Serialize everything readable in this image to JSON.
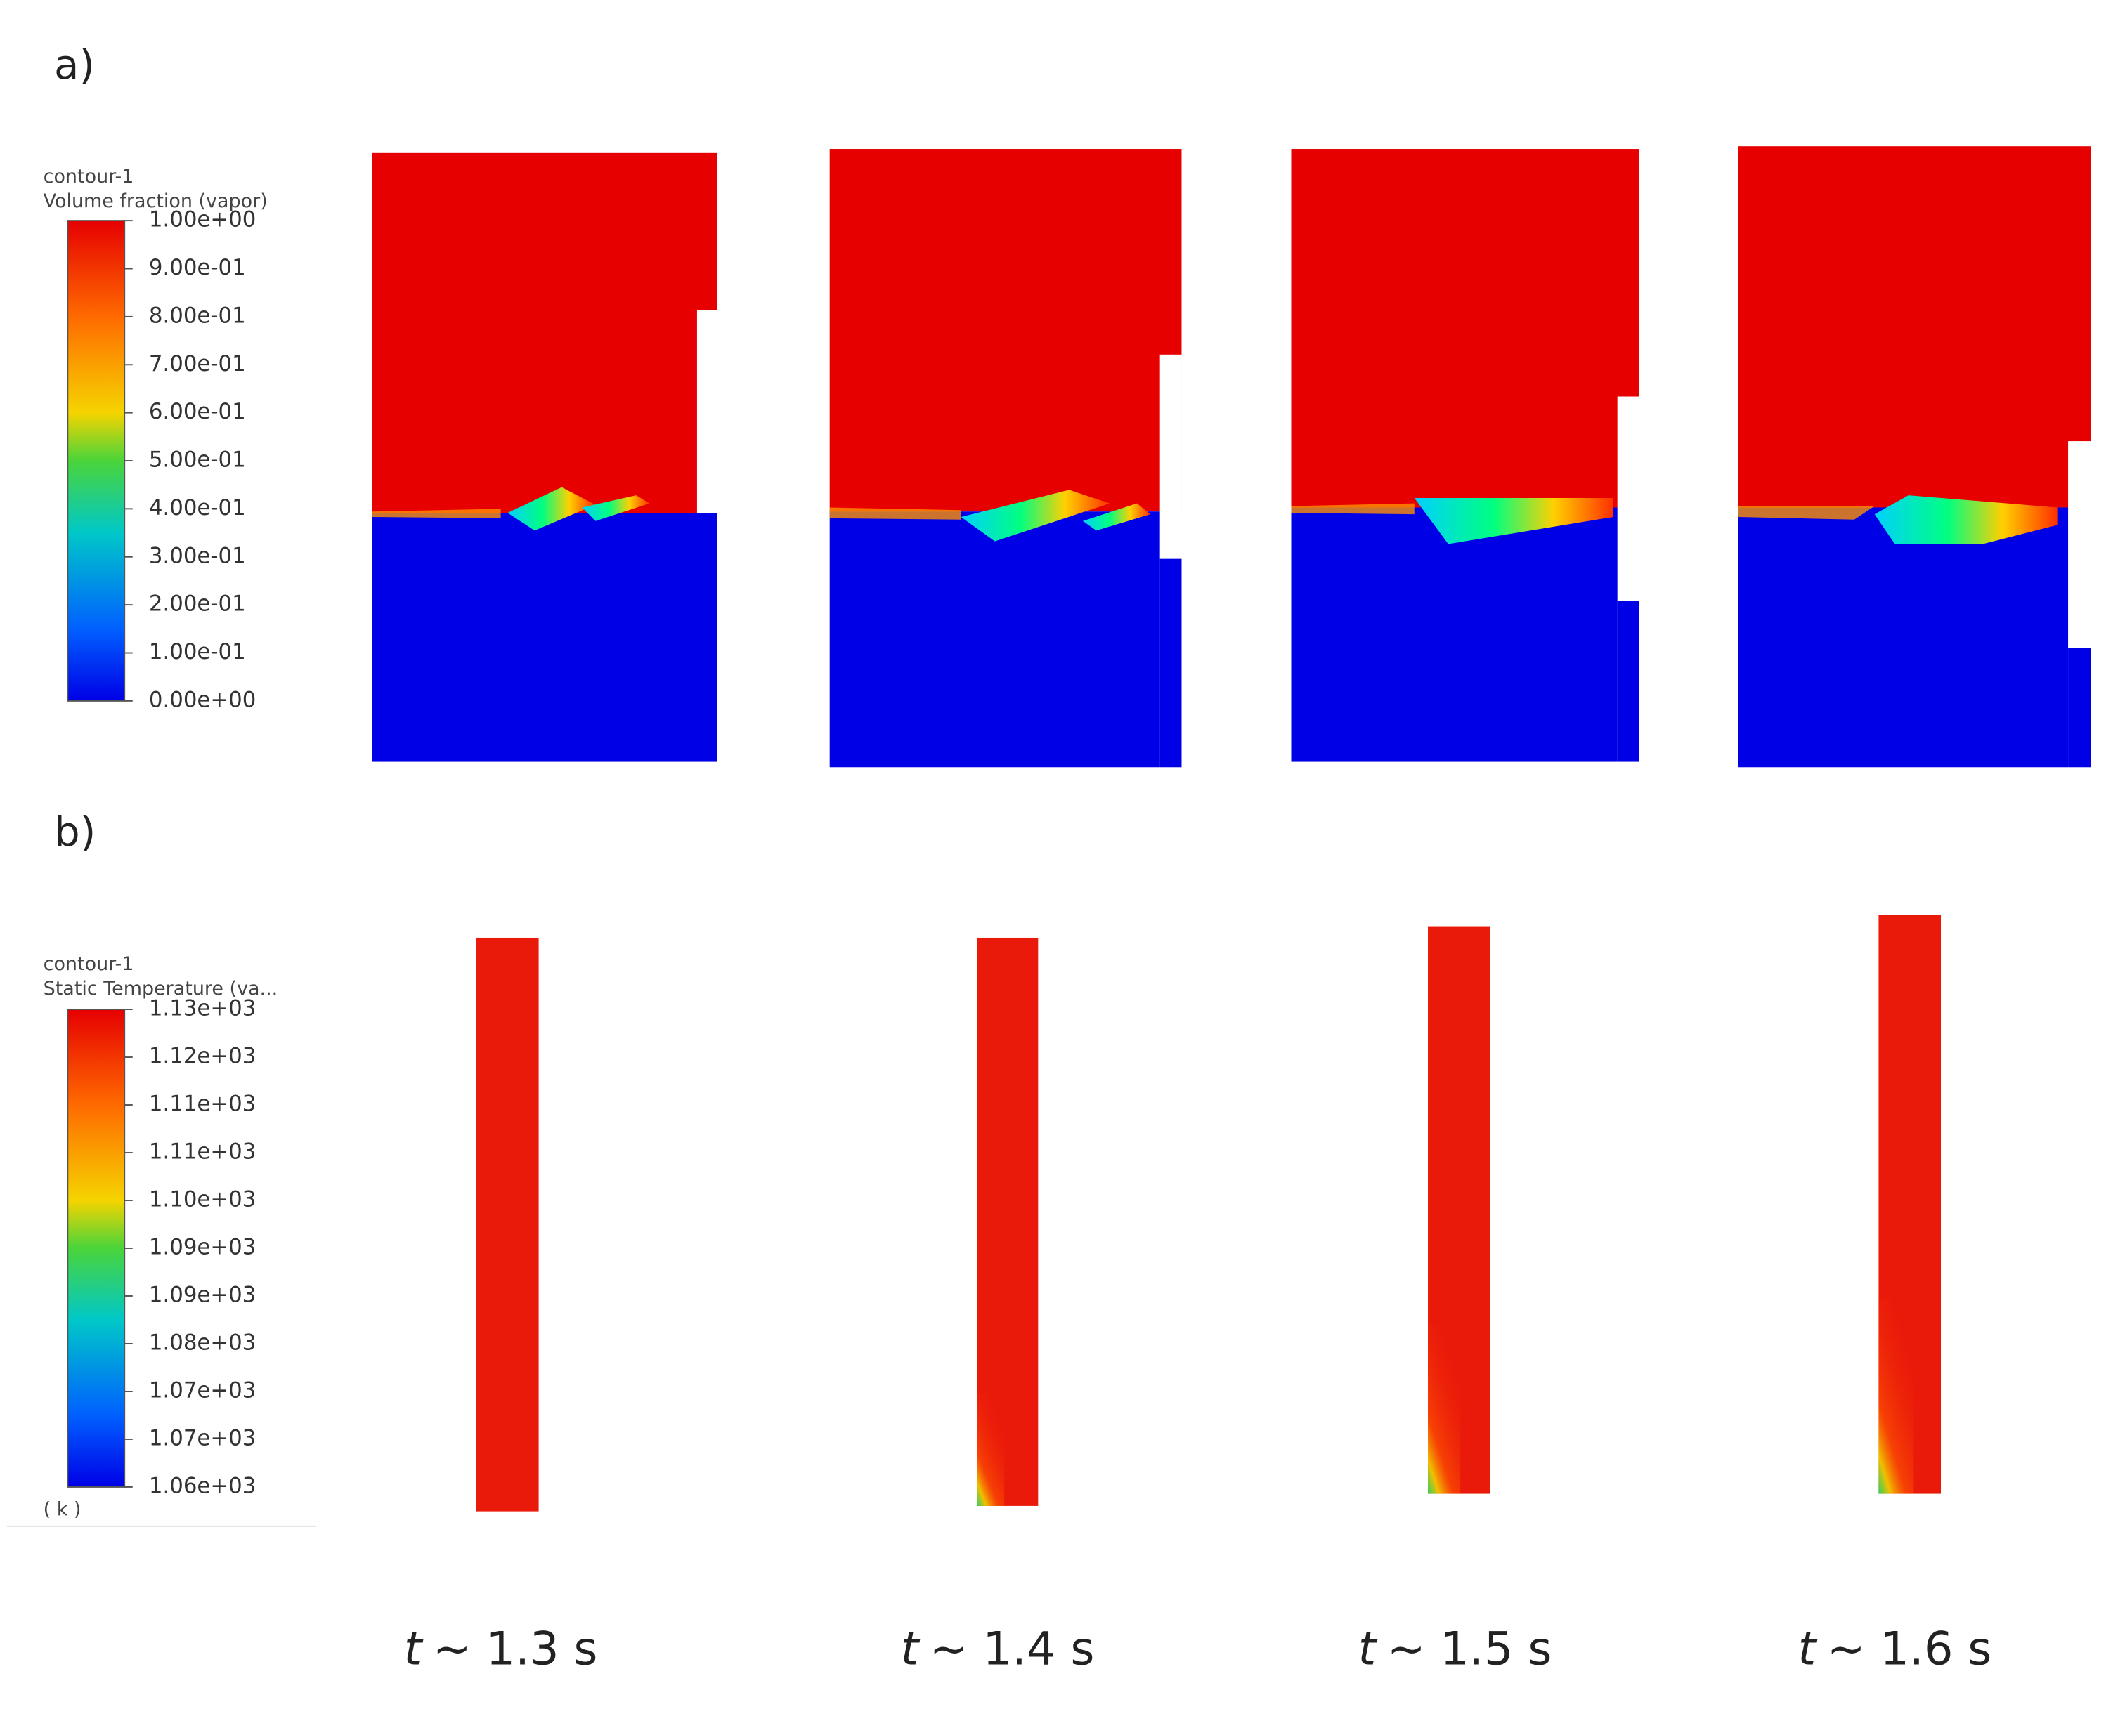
{
  "panels": [
    {
      "label": "a)",
      "colorbar": {
        "title": [
          "contour-1",
          "Volume fraction (vapor)"
        ],
        "ticks": [
          "1.00e+00",
          "9.00e-01",
          "8.00e-01",
          "7.00e-01",
          "6.00e-01",
          "5.00e-01",
          "4.00e-01",
          "3.00e-01",
          "2.00e-01",
          "1.00e-01",
          "0.00e+00"
        ]
      }
    },
    {
      "label": "b)",
      "colorbar": {
        "title": [
          "contour-1",
          "Static Temperature (va..."
        ],
        "ticks": [
          "1.13e+03",
          "1.12e+03",
          "1.11e+03",
          "1.11e+03",
          "1.10e+03",
          "1.09e+03",
          "1.09e+03",
          "1.08e+03",
          "1.07e+03",
          "1.07e+03",
          "1.06e+03"
        ],
        "unit": "( k )"
      }
    }
  ],
  "time_labels": [
    {
      "var": "t",
      "text": "~ 1.3 s"
    },
    {
      "var": "t",
      "text": "~ 1.4 s"
    },
    {
      "var": "t",
      "text": "~ 1.5 s"
    },
    {
      "var": "t",
      "text": "~ 1.6 s"
    }
  ]
}
